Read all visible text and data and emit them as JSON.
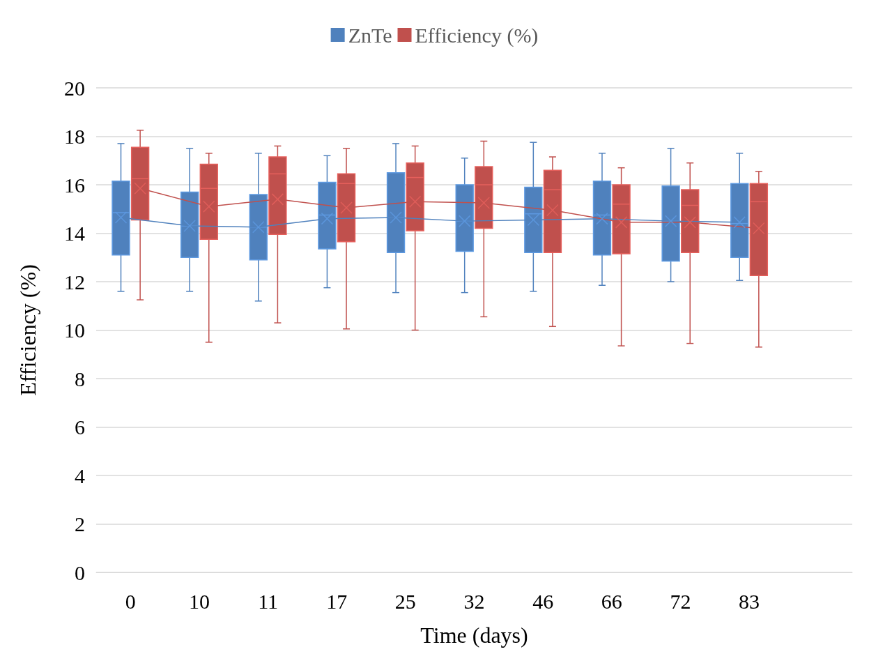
{
  "chart_data": {
    "type": "box",
    "xlabel": "Time (days)",
    "ylabel": "Efficiency (%)",
    "categories": [
      "0",
      "10",
      "11",
      "17",
      "25",
      "32",
      "46",
      "66",
      "72",
      "83",
      null
    ],
    "ylim": [
      0,
      20
    ],
    "yticks": [
      0,
      2,
      4,
      6,
      8,
      10,
      12,
      14,
      16,
      18,
      20
    ],
    "grid": "y",
    "legend": "top",
    "series": [
      {
        "name": "ZnTe",
        "color": "#4f81bd",
        "boxes": [
          {
            "low": 11.6,
            "q1": 13.1,
            "median": 14.85,
            "q3": 16.15,
            "high": 17.7,
            "mean": 14.65
          },
          {
            "low": 11.6,
            "q1": 13.0,
            "median": 14.3,
            "q3": 15.7,
            "high": 17.5,
            "mean": 14.3
          },
          {
            "low": 11.2,
            "q1": 12.9,
            "median": 14.25,
            "q3": 15.6,
            "high": 17.3,
            "mean": 14.25
          },
          {
            "low": 11.75,
            "q1": 13.35,
            "median": 14.75,
            "q3": 16.1,
            "high": 17.2,
            "mean": 14.6
          },
          {
            "low": 11.55,
            "q1": 13.2,
            "median": 14.65,
            "q3": 16.5,
            "high": 17.7,
            "mean": 14.65
          },
          {
            "low": 11.55,
            "q1": 13.25,
            "median": 14.5,
            "q3": 16.0,
            "high": 17.1,
            "mean": 14.5
          },
          {
            "low": 11.6,
            "q1": 13.2,
            "median": 14.8,
            "q3": 15.9,
            "high": 17.75,
            "mean": 14.55
          },
          {
            "low": 11.85,
            "q1": 13.1,
            "median": 14.75,
            "q3": 16.15,
            "high": 17.3,
            "mean": 14.6
          },
          {
            "low": 12.0,
            "q1": 12.85,
            "median": 14.5,
            "q3": 15.95,
            "high": 17.5,
            "mean": 14.5
          },
          {
            "low": 12.05,
            "q1": 13.0,
            "median": 14.4,
            "q3": 16.05,
            "high": 17.3,
            "mean": 14.45
          },
          null
        ]
      },
      {
        "name": "Efficiency (%)",
        "color": "#c0504d",
        "boxes": [
          {
            "low": 11.25,
            "q1": 14.55,
            "median": 16.25,
            "q3": 17.55,
            "high": 18.25,
            "mean": 15.85
          },
          {
            "low": 9.5,
            "q1": 13.75,
            "median": 15.85,
            "q3": 16.85,
            "high": 17.3,
            "mean": 15.1
          },
          {
            "low": 10.3,
            "q1": 13.95,
            "median": 16.45,
            "q3": 17.15,
            "high": 17.6,
            "mean": 15.4
          },
          {
            "low": 10.05,
            "q1": 13.65,
            "median": 16.05,
            "q3": 16.45,
            "high": 17.5,
            "mean": 15.05
          },
          {
            "low": 10.0,
            "q1": 14.1,
            "median": 16.3,
            "q3": 16.9,
            "high": 17.6,
            "mean": 15.3
          },
          {
            "low": 10.55,
            "q1": 14.2,
            "median": 16.0,
            "q3": 16.75,
            "high": 17.8,
            "mean": 15.25
          },
          {
            "low": 10.15,
            "q1": 13.2,
            "median": 15.8,
            "q3": 16.6,
            "high": 17.15,
            "mean": 14.95
          },
          {
            "low": 9.35,
            "q1": 13.15,
            "median": 15.2,
            "q3": 16.0,
            "high": 16.7,
            "mean": 14.45
          },
          {
            "low": 9.45,
            "q1": 13.2,
            "median": 15.15,
            "q3": 15.8,
            "high": 16.9,
            "mean": 14.45
          },
          {
            "low": 9.3,
            "q1": 12.25,
            "median": 15.3,
            "q3": 16.05,
            "high": 16.55,
            "mean": 14.2
          },
          null
        ]
      },
      {
        "type": "line",
        "color": "#4f81bd",
        "values": [
          14.65,
          14.3,
          14.25,
          14.6,
          14.65,
          14.5,
          14.55,
          14.6,
          14.5,
          14.45,
          null
        ]
      },
      {
        "type": "line",
        "color": "#c0504d",
        "values": [
          15.85,
          15.1,
          15.4,
          15.05,
          15.3,
          15.25,
          14.95,
          14.45,
          14.45,
          14.2,
          null
        ]
      }
    ]
  }
}
